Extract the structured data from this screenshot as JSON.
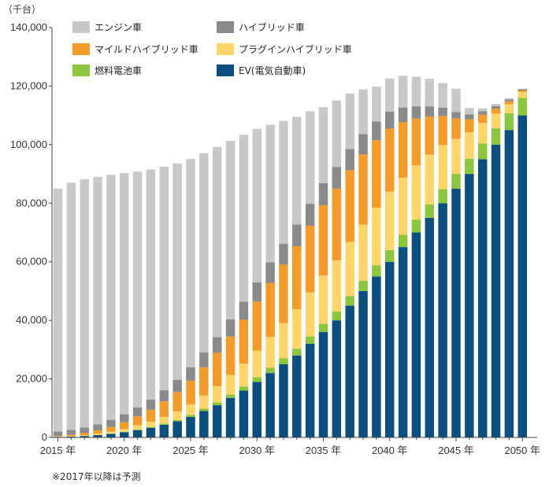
{
  "chart_data": {
    "type": "bar",
    "stacked": true,
    "unit_label": "（千台）",
    "note": "※2017年以降は予測",
    "ylim": [
      0,
      140000
    ],
    "yticks": [
      "0",
      "20,000",
      "40,000",
      "60,000",
      "80,000",
      "100,000",
      "120,000",
      "140,000"
    ],
    "ytick_values": [
      0,
      20000,
      40000,
      60000,
      80000,
      100000,
      120000,
      140000
    ],
    "xtick_labels": [
      "2015 年",
      "2020 年",
      "2025 年",
      "2030 年",
      "2035 年",
      "2040 年",
      "2045 年",
      "2050 年"
    ],
    "xtick_years": [
      2015,
      2020,
      2025,
      2030,
      2035,
      2040,
      2045,
      2050
    ],
    "categories": [
      2015,
      2016,
      2017,
      2018,
      2019,
      2020,
      2021,
      2022,
      2023,
      2024,
      2025,
      2026,
      2027,
      2028,
      2029,
      2030,
      2031,
      2032,
      2033,
      2034,
      2035,
      2036,
      2037,
      2038,
      2039,
      2040,
      2041,
      2042,
      2043,
      2044,
      2045,
      2046,
      2047,
      2048,
      2049,
      2050
    ],
    "grid": false,
    "legend_position": "top",
    "series": [
      {
        "name": "EV(電気自動車)",
        "color": "#0a4f80",
        "values": [
          200,
          300,
          500,
          800,
          1200,
          1800,
          2500,
          3300,
          4300,
          5500,
          7000,
          9000,
          11000,
          13500,
          16000,
          19000,
          22000,
          25000,
          28000,
          32000,
          36000,
          40000,
          45000,
          50000,
          55000,
          60000,
          65000,
          70000,
          75000,
          80000,
          85000,
          90000,
          95000,
          100000,
          105000,
          110000
        ]
      },
      {
        "name": "燃料電池車",
        "color": "#8cc63f",
        "values": [
          0,
          0,
          0,
          0,
          100,
          100,
          200,
          300,
          400,
          500,
          700,
          800,
          1000,
          1200,
          1400,
          1600,
          1800,
          2000,
          2300,
          2500,
          2800,
          3000,
          3300,
          3500,
          3800,
          4000,
          4200,
          4400,
          4600,
          4800,
          5000,
          5200,
          5400,
          5600,
          5800,
          6000
        ]
      },
      {
        "name": "プラグインハイブリッド車",
        "color": "#fdd56a",
        "values": [
          100,
          200,
          300,
          500,
          700,
          1000,
          1400,
          1800,
          2300,
          2900,
          3600,
          4500,
          5500,
          6600,
          7800,
          9000,
          10500,
          12000,
          13500,
          15000,
          16500,
          17500,
          18500,
          19200,
          19700,
          20000,
          19500,
          18500,
          17000,
          15000,
          12000,
          9000,
          7000,
          5000,
          3000,
          2000
        ]
      },
      {
        "name": "マイルドハイブリッド車",
        "color": "#f39c2c",
        "values": [
          200,
          400,
          700,
          1100,
          1600,
          2300,
          3100,
          4100,
          5300,
          6600,
          8100,
          9700,
          11400,
          13200,
          15000,
          16800,
          18500,
          20000,
          21500,
          22800,
          24000,
          24500,
          24500,
          24000,
          23000,
          21500,
          19000,
          16000,
          13000,
          10000,
          7000,
          4500,
          2800,
          1700,
          1000,
          500
        ]
      },
      {
        "name": "ハイブリッド車",
        "color": "#8a8a8a",
        "values": [
          1500,
          1700,
          1900,
          2100,
          2400,
          2700,
          3000,
          3400,
          3800,
          4200,
          4600,
          5000,
          5400,
          5800,
          6200,
          6600,
          7000,
          7200,
          7400,
          7500,
          7500,
          7400,
          7200,
          6900,
          6400,
          5800,
          5000,
          4200,
          3500,
          2800,
          2200,
          1600,
          1200,
          900,
          600,
          400
        ]
      },
      {
        "name": "エンジン車",
        "color": "#c8c8c8",
        "values": [
          83000,
          84400,
          84800,
          84500,
          83700,
          82400,
          80600,
          78600,
          76400,
          73900,
          71100,
          68100,
          64900,
          61000,
          57000,
          52400,
          47000,
          41900,
          36800,
          31600,
          26000,
          22700,
          19000,
          15300,
          11900,
          11300,
          10800,
          10100,
          9400,
          8400,
          7900,
          2200,
          1000,
          700,
          500,
          200
        ]
      }
    ],
    "legend": [
      {
        "label": "エンジン車",
        "color": "#c8c8c8"
      },
      {
        "label": "ハイブリッド車",
        "color": "#8a8a8a"
      },
      {
        "label": "マイルドハイブリッド車",
        "color": "#f39c2c"
      },
      {
        "label": "プラグインハイブリッド車",
        "color": "#fdd56a"
      },
      {
        "label": "燃料電池車",
        "color": "#8cc63f"
      },
      {
        "label": "EV(電気自動車)",
        "color": "#0a4f80"
      }
    ]
  }
}
